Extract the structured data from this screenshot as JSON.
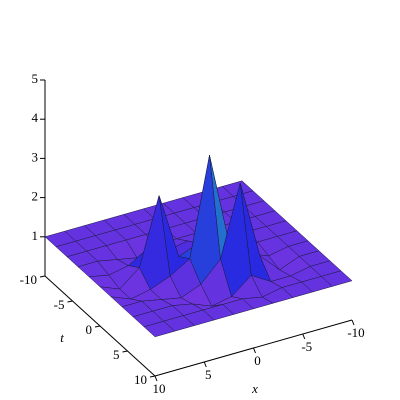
{
  "chart_data": {
    "type": "surface",
    "x_label": "x",
    "t_label": "t",
    "x": [
      -10,
      -8,
      -6,
      -4,
      -2,
      0,
      2,
      4,
      6,
      8,
      10
    ],
    "t": [
      -10,
      -8,
      -6,
      -4,
      -2,
      0,
      2,
      4,
      6,
      8,
      10
    ],
    "z": [
      [
        1,
        1,
        1,
        1,
        1,
        1,
        1,
        1,
        1,
        1,
        1
      ],
      [
        1,
        1,
        1,
        1,
        1,
        1,
        1,
        1,
        1,
        1,
        1
      ],
      [
        1,
        1,
        1,
        1,
        1,
        1,
        1,
        1,
        1,
        1,
        1
      ],
      [
        1,
        1,
        1,
        1,
        1,
        1,
        0.9,
        0.8,
        0.9,
        1,
        1
      ],
      [
        1,
        1,
        1,
        0.9,
        0.8,
        1.2,
        1.1,
        1.3,
        1,
        0.9,
        1
      ],
      [
        1,
        1,
        1,
        0.9,
        1.2,
        1.4,
        1.2,
        2.9,
        1.2,
        0.8,
        1
      ],
      [
        1,
        1,
        0.9,
        1.1,
        1.5,
        3.9,
        1.4,
        1.1,
        0.9,
        0.8,
        1
      ],
      [
        1,
        1,
        0.8,
        1.3,
        3.3,
        1.5,
        1,
        0.8,
        0.9,
        1,
        1
      ],
      [
        1,
        1,
        0.9,
        0.9,
        1.2,
        0.8,
        0.7,
        0.9,
        1,
        1,
        1
      ],
      [
        1,
        1,
        1,
        1,
        0.9,
        1,
        1,
        1,
        1,
        1,
        1
      ],
      [
        1,
        1,
        1,
        1,
        1,
        1,
        1,
        1,
        1,
        1,
        1
      ]
    ],
    "xlim": [
      -10,
      10
    ],
    "tlim": [
      -10,
      10
    ],
    "zlim": [
      0,
      5
    ],
    "xticks": [
      -10,
      -5,
      0,
      5,
      10
    ],
    "tticks": [
      -10,
      -5,
      0,
      5,
      10
    ],
    "zticks": [
      1,
      2,
      3,
      4,
      5
    ],
    "colors": [
      "#c040e0",
      "#2828e0",
      "#20b0c0",
      "#30e060"
    ]
  }
}
